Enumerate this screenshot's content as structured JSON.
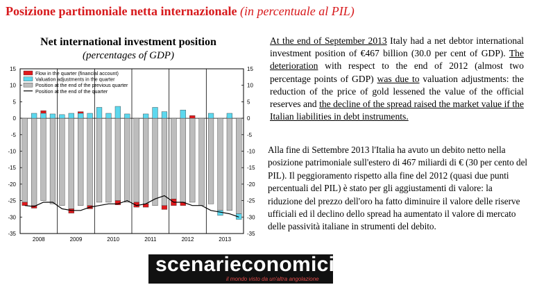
{
  "headline": {
    "main": "Posizione partimoniale netta internazionale",
    "paren": "(in percentuale al PIL)"
  },
  "chart_data": {
    "type": "bar",
    "title": "Net international investment position",
    "subtitle": "(percentages of GDP)",
    "ylim": [
      -35,
      15
    ],
    "yticks": [
      15,
      10,
      5,
      0,
      -5,
      -10,
      -15,
      -20,
      -25,
      -30,
      -35
    ],
    "xtick_labels": [
      "2008",
      "2009",
      "2010",
      "2011",
      "2012",
      "2013"
    ],
    "quarters_per_year": 4,
    "legend_position": "top-left",
    "legend": [
      {
        "name": "Flow in the quarter (financial account)",
        "color": "#e0191c"
      },
      {
        "name": "Valuation adjustments in the quarter",
        "color": "#5dd8ee"
      },
      {
        "name": "Position at the end of the previous quarter",
        "color": "#bdbdbd"
      },
      {
        "name": "Position at the end of the quarter",
        "color": "#000000"
      }
    ],
    "series": [
      {
        "name": "Position at the end of the previous quarter",
        "values": [
          -25.5,
          -26.5,
          -25,
          -26,
          -26.5,
          -27.5,
          -26.5,
          -26.5,
          -25.5,
          -25.5,
          -25,
          -25.5,
          -25.5,
          -26,
          -26.5,
          -26.5,
          -24.5,
          -25.5,
          -25.5,
          -26.5,
          -26,
          -28,
          -28,
          -29
        ]
      },
      {
        "name": "Flow in the quarter (financial account)",
        "values": [
          -1,
          -0.8,
          2.3,
          0,
          0,
          -1.3,
          2,
          -1,
          0,
          0,
          -1.3,
          0,
          -1.5,
          -1,
          0,
          -1.2,
          -2,
          -1,
          0.8,
          0,
          0,
          0,
          0.5,
          0
        ]
      },
      {
        "name": "Valuation adjustments in the quarter",
        "values": [
          0,
          1.5,
          1.5,
          1.3,
          1.1,
          1.5,
          1.5,
          1.5,
          3.3,
          1.5,
          3.6,
          1.3,
          0,
          1.3,
          3.3,
          2,
          0,
          2.5,
          0,
          0,
          1.5,
          -1.5,
          1.5,
          -1.7
        ]
      },
      {
        "name": "Position at the end of the quarter",
        "values": [
          -26.5,
          -26.8,
          -25.5,
          -25.5,
          -27.5,
          -28,
          -28,
          -27,
          -26.5,
          -26,
          -26,
          -25,
          -26.5,
          -26,
          -24.5,
          -23.5,
          -25.5,
          -25.5,
          -26.5,
          -26.5,
          -28,
          -28.5,
          -29,
          -30
        ]
      }
    ]
  },
  "text_en": {
    "p1": "At the end of September 2013",
    "p2": " Italy had a net debtor international investment position of €467 billion (30.0 per cent of GDP). ",
    "p3": "The deterioration",
    "p4": " with respect to the end of 2012 (almost two percentage points of GDP) ",
    "p5": "was due to",
    "p6": " valuation adjustments: the reduction of the price of gold lessened the value of the official reserves and ",
    "p7": "the decline of the spread raised the market value if the Italian liabilities in debt instruments."
  },
  "text_it": "Alla fine di Settembre 2013 l'Italia ha avuto un debito netto nella posizione patrimoniale sull'estero di 467 miliardi di € (30 per cento del PIL). Il peggioramento rispetto alla fine del 2012 (quasi due punti percentuali del PIL) è stato per gli aggiustamenti di valore: la riduzione del prezzo dell'oro ha fatto diminuire il valore delle riserve ufficiali ed il declino dello spread ha aumentato il valore di mercato delle passività italiane in strumenti del debito.",
  "logo": {
    "name": "scenarieconomici.it",
    "tagline": "il mondo visto da un'altra angolazione"
  }
}
